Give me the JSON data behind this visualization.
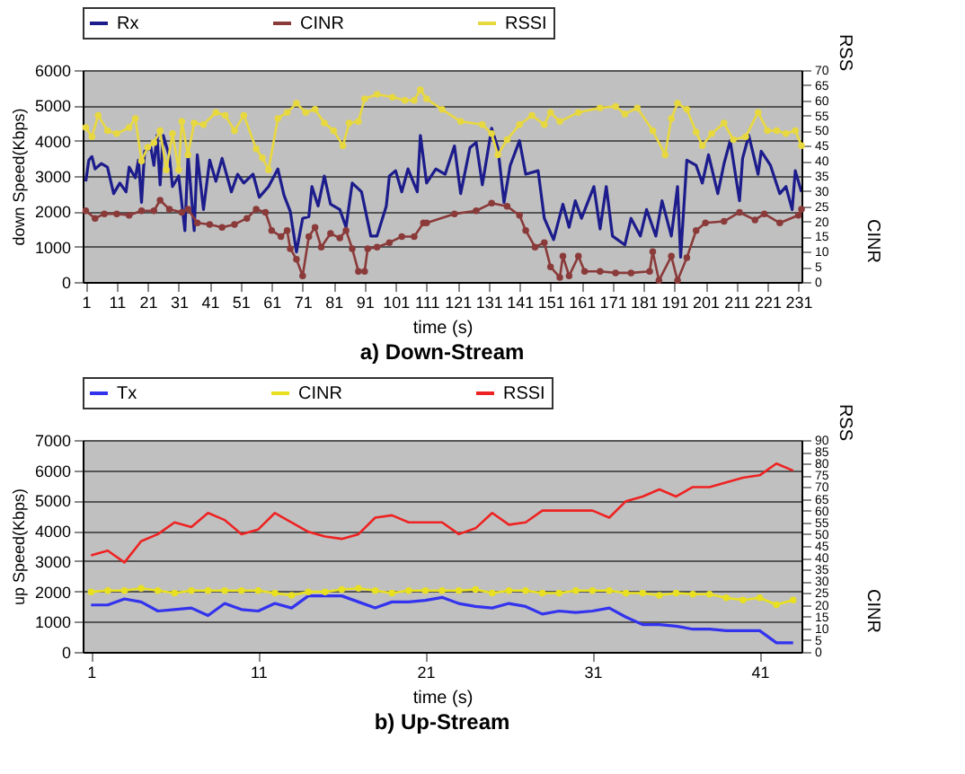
{
  "chart_data": [
    {
      "type": "line",
      "title": "a) Down-Stream",
      "xlabel": "time (s)",
      "ylabel": "down Speed(Kbps)",
      "y2label": "RSS",
      "annotations": [
        "CINR"
      ],
      "xlim": [
        0,
        232
      ],
      "xticks": [
        1,
        11,
        21,
        31,
        41,
        51,
        61,
        71,
        81,
        91,
        101,
        111,
        121,
        131,
        141,
        151,
        161,
        171,
        181,
        191,
        201,
        211,
        221,
        231
      ],
      "ylim": [
        0,
        6000
      ],
      "yticks": [
        0,
        1000,
        2000,
        3000,
        4000,
        5000,
        6000
      ],
      "y2lim": [
        0,
        70
      ],
      "y2ticks": [
        0,
        5,
        10,
        15,
        20,
        25,
        30,
        35,
        40,
        45,
        50,
        55,
        60,
        65,
        70
      ],
      "grid": "y",
      "legend": "top",
      "series": [
        {
          "name": "Rx",
          "color": "#1c1c8c",
          "marker": "none",
          "x": [
            1,
            2,
            3,
            4,
            6,
            8,
            10,
            12,
            14,
            15,
            17,
            18,
            19,
            20,
            22,
            23,
            24,
            25,
            26,
            28,
            29,
            31,
            33,
            34,
            36,
            37,
            39,
            41,
            43,
            45,
            48,
            50,
            52,
            55,
            57,
            60,
            63,
            65,
            67,
            69,
            71,
            73,
            74,
            76,
            78,
            80,
            83,
            85,
            87,
            90,
            93,
            95,
            98,
            99,
            101,
            103,
            105,
            108,
            109,
            111,
            114,
            117,
            120,
            122,
            125,
            127,
            129,
            132,
            134,
            136,
            138,
            141,
            143,
            147,
            149,
            152,
            155,
            157,
            159,
            161,
            165,
            167,
            169,
            171,
            175,
            177,
            180,
            182,
            185,
            187,
            190,
            192,
            193,
            195,
            198,
            200,
            202,
            205,
            207,
            209,
            212,
            213,
            215,
            218,
            219,
            222,
            225,
            227,
            229,
            230,
            232
          ],
          "values": [
            2850,
            3450,
            3550,
            3200,
            3350,
            3250,
            2500,
            2800,
            2550,
            3250,
            2950,
            3450,
            2250,
            3700,
            3800,
            3300,
            4150,
            2750,
            4150,
            3550,
            2700,
            3000,
            1450,
            3600,
            1450,
            3600,
            2050,
            3450,
            2850,
            3500,
            2550,
            3050,
            2800,
            3050,
            2400,
            2700,
            3200,
            2450,
            2000,
            850,
            1800,
            1850,
            2700,
            2150,
            3000,
            2200,
            2050,
            1550,
            2800,
            2550,
            1300,
            1300,
            2150,
            3000,
            3150,
            2550,
            3200,
            2550,
            4150,
            2800,
            3200,
            3050,
            3850,
            2500,
            3800,
            3950,
            2750,
            4350,
            3800,
            2250,
            3300,
            4000,
            3050,
            3150,
            1800,
            1200,
            2200,
            1550,
            2300,
            1800,
            2700,
            1500,
            2700,
            1300,
            1050,
            1800,
            1300,
            2050,
            1300,
            2300,
            1300,
            2700,
            700,
            3450,
            3300,
            2800,
            3600,
            2500,
            3350,
            4000,
            2300,
            3500,
            4150,
            3050,
            3700,
            3300,
            2500,
            2700,
            2050,
            3150,
            2550
          ]
        },
        {
          "name": "CINR",
          "color": "#8b3a3a",
          "marker": "circle",
          "axis": "y2",
          "x": [
            1,
            4,
            7,
            11,
            15,
            19,
            23,
            25,
            28,
            32,
            34,
            37,
            41,
            45,
            49,
            53,
            56,
            59,
            61,
            64,
            66,
            67,
            69,
            71,
            73,
            75,
            77,
            80,
            83,
            85,
            87,
            89,
            91,
            92,
            95,
            99,
            103,
            107,
            110,
            111,
            120,
            127,
            132,
            137,
            141,
            143,
            146,
            149,
            151,
            154,
            155,
            157,
            160,
            162,
            167,
            172,
            177,
            183,
            184,
            186,
            190,
            192,
            195,
            198,
            201,
            207,
            212,
            217,
            220,
            225,
            231,
            232
          ],
          "values": [
            23.5,
            21,
            22.5,
            22.5,
            22,
            23.5,
            23.5,
            27,
            24,
            23,
            24,
            19.5,
            19,
            18,
            19,
            21,
            24,
            23,
            17,
            15,
            17,
            11,
            7.5,
            2,
            15,
            18,
            11.5,
            16,
            14.5,
            17,
            11,
            3.5,
            3.5,
            11,
            11.5,
            13,
            15,
            15,
            19.5,
            19.5,
            22.5,
            23.5,
            26,
            25,
            22,
            17,
            11.5,
            13,
            5,
            1.5,
            8.5,
            2,
            8.5,
            3.5,
            3.5,
            3,
            3,
            3.5,
            10,
            0.5,
            8.5,
            0.5,
            8,
            17,
            19.5,
            20,
            23,
            20.5,
            22.5,
            19.5,
            22,
            24
          ]
        },
        {
          "name": "RSSI",
          "color": "#e8d840",
          "marker": "circle",
          "axis": "y2",
          "x": [
            1,
            3,
            5,
            8,
            11,
            15,
            17,
            19,
            21,
            23,
            25,
            27,
            29,
            31,
            32,
            34,
            36,
            39,
            43,
            46,
            49,
            52,
            56,
            58,
            60,
            63,
            66,
            69,
            72,
            75,
            78,
            81,
            84,
            86,
            89,
            91,
            95,
            100,
            104,
            107,
            109,
            111,
            116,
            122,
            129,
            132,
            134,
            137,
            141,
            145,
            149,
            151,
            154,
            160,
            167,
            172,
            175,
            179,
            184,
            188,
            190,
            192,
            195,
            198,
            200,
            203,
            207,
            210,
            214,
            218,
            221,
            224,
            227,
            230,
            232
          ],
          "values": [
            51,
            48,
            55,
            50,
            49,
            51,
            54,
            40,
            44.5,
            46,
            50,
            37,
            49,
            37,
            53,
            42,
            52.5,
            52,
            56,
            55,
            50,
            55,
            44,
            41,
            37,
            54,
            56,
            59,
            56,
            57,
            52.5,
            50,
            45,
            52.5,
            53,
            60.5,
            62,
            61,
            60,
            60,
            63.5,
            60.5,
            57,
            53,
            52,
            49,
            42,
            47,
            52,
            55,
            52,
            56,
            53,
            56,
            57.5,
            58,
            55.5,
            57.5,
            50,
            42,
            54,
            59,
            57,
            49.5,
            45,
            49,
            52.5,
            47,
            48,
            56,
            50,
            50,
            49,
            50,
            45
          ]
        }
      ]
    },
    {
      "type": "line",
      "title": "b) Up-Stream",
      "xlabel": "time (s)",
      "ylabel": "up Speed(Kbps)",
      "y2label": "RSS",
      "annotations": [
        "CINR"
      ],
      "xlim": [
        0.5,
        43.5
      ],
      "xticks": [
        1,
        11,
        21,
        31,
        41
      ],
      "ylim": [
        0,
        7000
      ],
      "yticks": [
        0,
        1000,
        2000,
        3000,
        4000,
        5000,
        6000,
        7000
      ],
      "y2lim": [
        0,
        90
      ],
      "y2ticks": [
        0,
        5,
        10,
        15,
        20,
        25,
        30,
        35,
        40,
        45,
        50,
        55,
        60,
        65,
        70,
        75,
        80,
        85,
        90
      ],
      "grid": "y",
      "legend": "top",
      "x": [
        1,
        2,
        3,
        4,
        5,
        6,
        7,
        8,
        9,
        10,
        11,
        12,
        13,
        14,
        15,
        16,
        17,
        18,
        19,
        20,
        21,
        22,
        23,
        24,
        25,
        26,
        27,
        28,
        29,
        30,
        31,
        32,
        33,
        34,
        35,
        36,
        37,
        38,
        39,
        40,
        41,
        42,
        43
      ],
      "series": [
        {
          "name": "Tx",
          "color": "#3333ee",
          "marker": "none",
          "values": [
            1550,
            1550,
            1750,
            1650,
            1350,
            1400,
            1450,
            1200,
            1600,
            1400,
            1350,
            1600,
            1450,
            1850,
            1850,
            1850,
            1650,
            1450,
            1650,
            1650,
            1700,
            1800,
            1600,
            1500,
            1450,
            1600,
            1500,
            1250,
            1350,
            1300,
            1350,
            1450,
            1150,
            900,
            900,
            850,
            750,
            750,
            700,
            700,
            700,
            300,
            300
          ]
        },
        {
          "name": "CINR",
          "color": "#e8e020",
          "marker": "circle",
          "axis": "y2",
          "values": [
            25.5,
            26,
            26,
            27,
            26,
            25,
            26,
            26,
            26,
            26,
            26,
            25,
            24,
            25.5,
            25.5,
            26.5,
            27,
            26,
            25,
            26,
            26,
            26,
            26,
            26.5,
            25,
            26,
            26,
            25,
            25,
            26,
            26,
            26,
            25,
            25,
            24,
            25,
            24.5,
            24.5,
            23,
            22,
            23,
            20,
            22
          ]
        },
        {
          "name": "RSSI",
          "color": "#ee2222",
          "marker": "none",
          "axis": "y2",
          "values": [
            41,
            43,
            38,
            47,
            50,
            55,
            53,
            59,
            56,
            50,
            52,
            59,
            55,
            51,
            49,
            48,
            50,
            57,
            58,
            55,
            55,
            55,
            50,
            52.5,
            59,
            54,
            55,
            60,
            60,
            60,
            60,
            57,
            64,
            66,
            69,
            66,
            70,
            70,
            72,
            74,
            75,
            80,
            77
          ]
        }
      ]
    }
  ]
}
